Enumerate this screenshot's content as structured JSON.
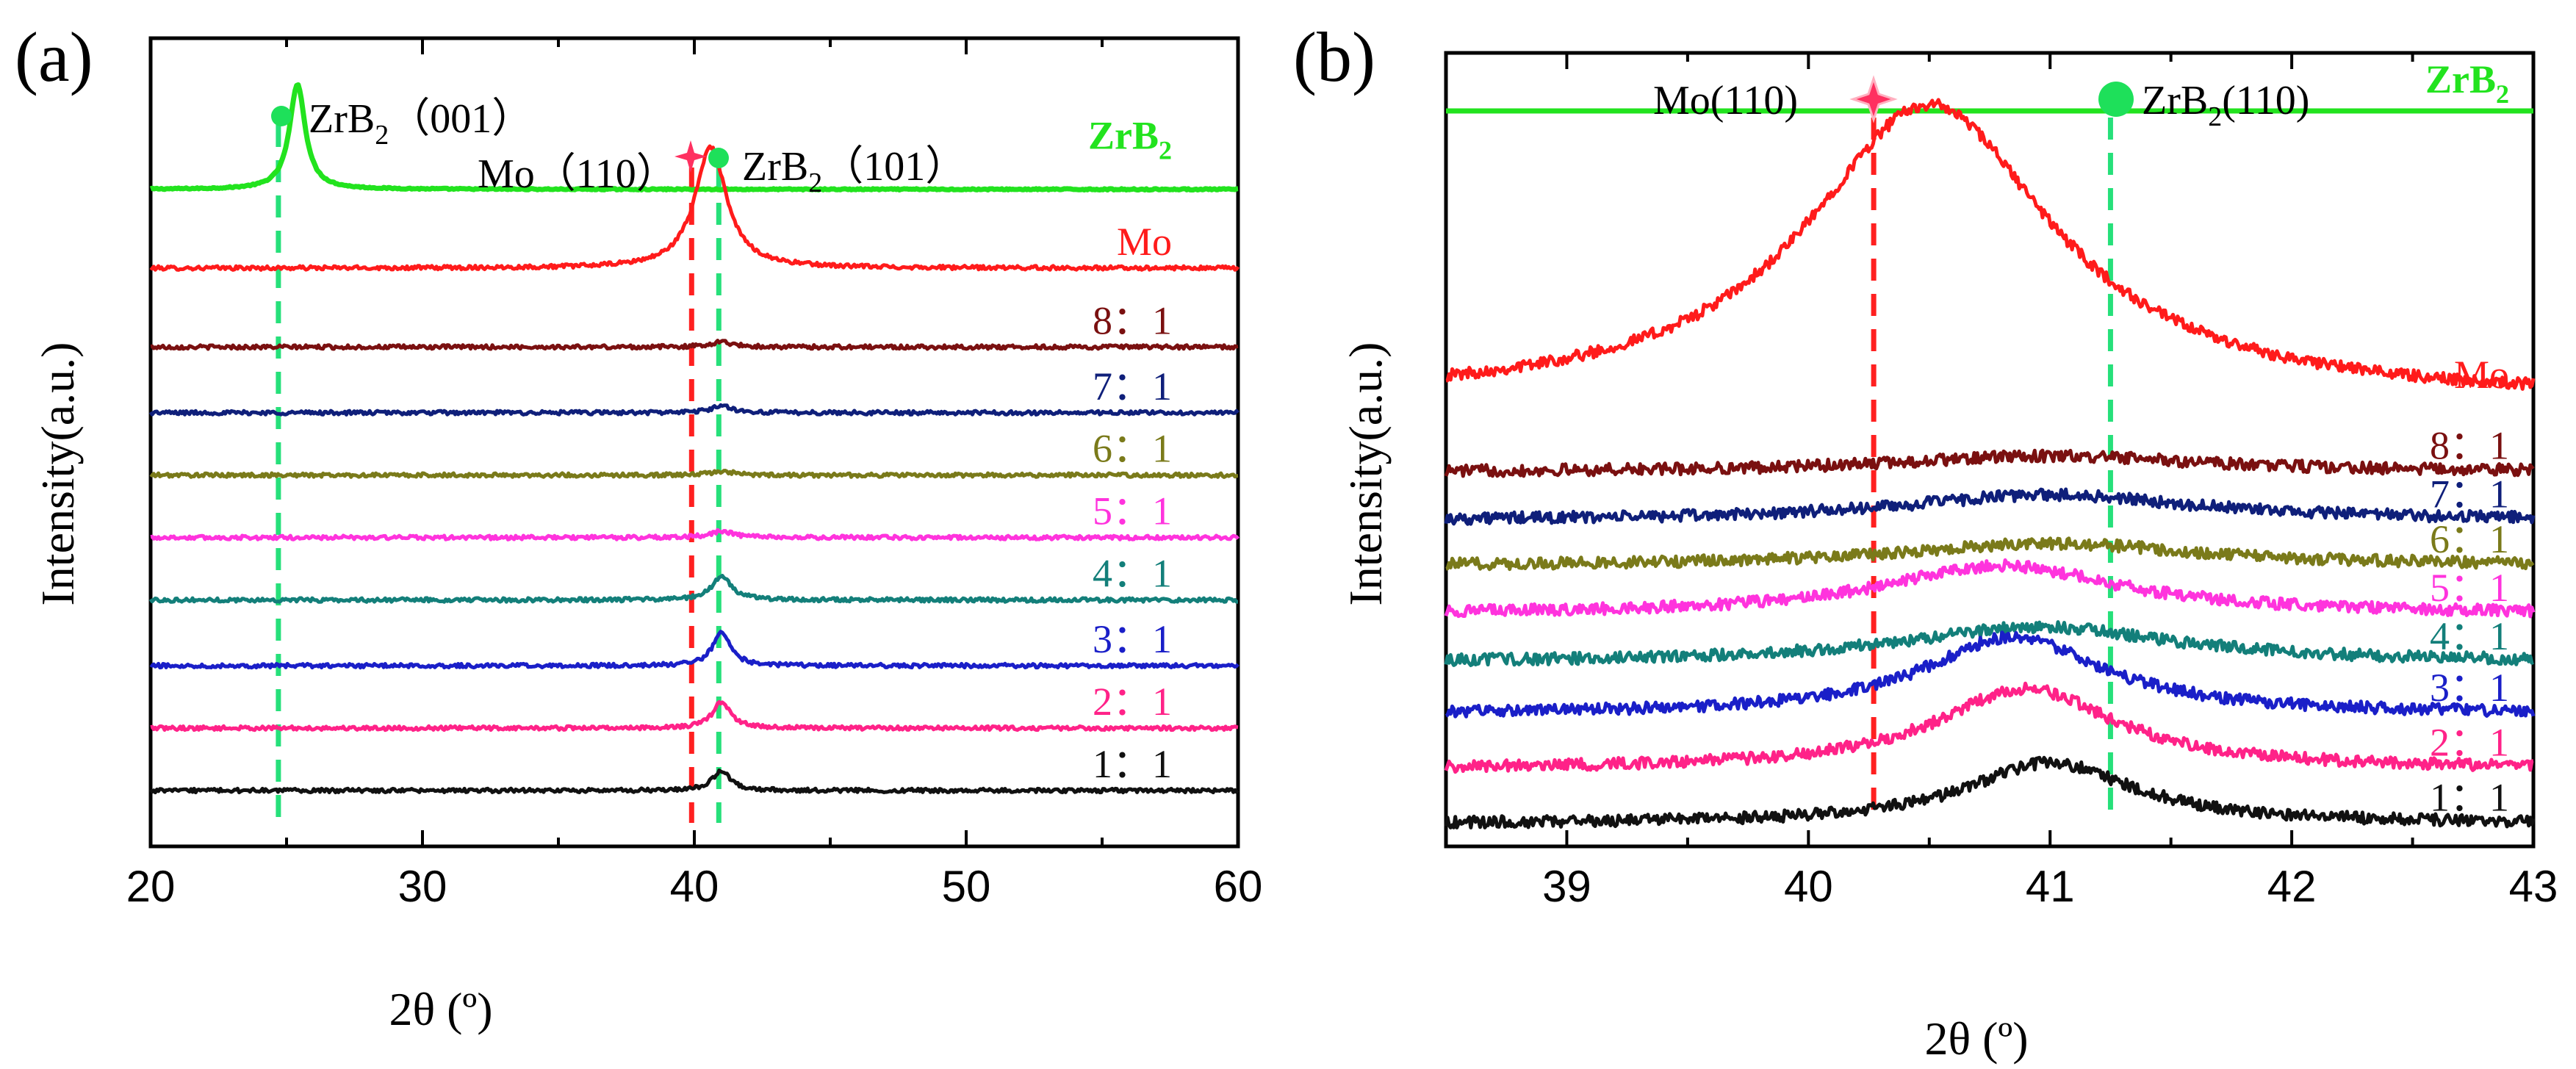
{
  "chart_data": [
    {
      "panel": "(a)",
      "type": "line",
      "xlabel": "2θ (º)",
      "ylabel": "Intensity(a.u.)",
      "xlim": [
        20,
        60
      ],
      "xticks": [
        20,
        30,
        40,
        50,
        60
      ],
      "vlines": [
        {
          "name": "ZrB2 (001)",
          "x": 24.7,
          "color": "#26e07a"
        },
        {
          "name": "Mo (110)",
          "x": 39.9,
          "color": "#ff2020"
        },
        {
          "name": "ZrB2 (101)",
          "x": 40.9,
          "color": "#26e07a"
        }
      ],
      "annotations": [
        {
          "text": "ZrB",
          "sub": "2",
          "tail": "（001）",
          "marker": "circle",
          "color": "#1ee05a"
        },
        {
          "text": "Mo（110）",
          "sub": "",
          "tail": "",
          "marker": "star",
          "color": "#ff3060"
        },
        {
          "text": "ZrB",
          "sub": "2",
          "tail": "（101）",
          "marker": "circle",
          "color": "#1ee05a"
        }
      ],
      "series": [
        {
          "name": "ZrB2",
          "label": "ZrB",
          "sub": "2",
          "color": "#22e31e",
          "offset": 10.0,
          "peaks": [
            {
              "x": 25.4,
              "h": 1.6,
              "w": 0.35
            }
          ]
        },
        {
          "name": "Mo",
          "label": "Mo",
          "sub": "",
          "color": "#ff1b1b",
          "offset": 8.8,
          "peaks": [
            {
              "x": 40.6,
              "h": 1.85,
              "w": 0.7
            }
          ]
        },
        {
          "name": "8:1",
          "label": "8：1",
          "sub": "",
          "color": "#7a1010",
          "offset": 7.6,
          "peaks": [
            {
              "x": 41.0,
              "h": 0.08,
              "w": 0.5
            }
          ]
        },
        {
          "name": "7:1",
          "label": "7：1",
          "sub": "",
          "color": "#0f1f7a",
          "offset": 6.6,
          "peaks": [
            {
              "x": 41.0,
              "h": 0.1,
              "w": 0.5
            }
          ]
        },
        {
          "name": "6:1",
          "label": "6：1",
          "sub": "",
          "color": "#7a7a1a",
          "offset": 5.65,
          "peaks": [
            {
              "x": 41.0,
              "h": 0.06,
              "w": 0.5
            }
          ]
        },
        {
          "name": "5:1",
          "label": "5：1",
          "sub": "",
          "color": "#ff33dd",
          "offset": 4.7,
          "peaks": [
            {
              "x": 41.0,
              "h": 0.1,
              "w": 0.5
            }
          ]
        },
        {
          "name": "4:1",
          "label": "4：1",
          "sub": "",
          "color": "#137f7a",
          "offset": 3.75,
          "peaks": [
            {
              "x": 41.0,
              "h": 0.35,
              "w": 0.45
            }
          ]
        },
        {
          "name": "3:1",
          "label": "3：1",
          "sub": "",
          "color": "#1a1fc8",
          "offset": 2.75,
          "peaks": [
            {
              "x": 41.0,
              "h": 0.5,
              "w": 0.4
            }
          ]
        },
        {
          "name": "2:1",
          "label": "2：1",
          "sub": "",
          "color": "#ff2288",
          "offset": 1.8,
          "peaks": [
            {
              "x": 41.0,
              "h": 0.4,
              "w": 0.4
            }
          ]
        },
        {
          "name": "1:1",
          "label": "1：1",
          "sub": "",
          "color": "#111111",
          "offset": 0.85,
          "peaks": [
            {
              "x": 41.0,
              "h": 0.3,
              "w": 0.4
            }
          ]
        }
      ]
    },
    {
      "panel": "(b)",
      "type": "line",
      "xlabel": "2θ (º)",
      "ylabel": "Intensity(a.u.)",
      "xlim": [
        38.5,
        43
      ],
      "xticks": [
        39,
        40,
        41,
        42,
        43
      ],
      "vlines": [
        {
          "name": "Mo(110)",
          "x": 40.27,
          "color": "#ff2020"
        },
        {
          "name": "ZrB2(110)",
          "x": 41.25,
          "color": "#26e07a"
        }
      ],
      "annotations": [
        {
          "text": "Mo(110)",
          "sub": "",
          "tail": "",
          "marker": "star",
          "color": "#ff3060"
        },
        {
          "text": "ZrB",
          "sub": "2",
          "tail": "(110)",
          "marker": "circle",
          "color": "#1ee05a"
        }
      ],
      "series": [
        {
          "name": "ZrB2",
          "label": "ZrB",
          "sub": "2",
          "color": "#22e31e",
          "offset": 11.4,
          "peaks": []
        },
        {
          "name": "Mo",
          "label": "Mo",
          "sub": "",
          "color": "#ff1b1b",
          "offset": 6.9,
          "peaks": [
            {
              "x": 40.5,
              "h": 4.6,
              "w": 0.62
            }
          ]
        },
        {
          "name": "8:1",
          "label": "8：1",
          "sub": "",
          "color": "#7a1010",
          "offset": 5.8,
          "peaks": [
            {
              "x": 41.0,
              "h": 0.25,
              "w": 0.8
            }
          ]
        },
        {
          "name": "7:1",
          "label": "7：1",
          "sub": "",
          "color": "#0f1f7a",
          "offset": 5.05,
          "peaks": [
            {
              "x": 41.0,
              "h": 0.4,
              "w": 0.75
            }
          ]
        },
        {
          "name": "6:1",
          "label": "6：1",
          "sub": "",
          "color": "#7a7a1a",
          "offset": 4.35,
          "peaks": [
            {
              "x": 41.0,
              "h": 0.35,
              "w": 0.75
            }
          ]
        },
        {
          "name": "5:1",
          "label": "5：1",
          "sub": "",
          "color": "#ff33dd",
          "offset": 3.6,
          "peaks": [
            {
              "x": 40.8,
              "h": 0.75,
              "w": 0.6
            }
          ]
        },
        {
          "name": "4:1",
          "label": "4：1",
          "sub": "",
          "color": "#137f7a",
          "offset": 2.85,
          "peaks": [
            {
              "x": 40.95,
              "h": 0.55,
              "w": 0.7
            }
          ]
        },
        {
          "name": "3:1",
          "label": "3：1",
          "sub": "",
          "color": "#1a1fc8",
          "offset": 2.05,
          "peaks": [
            {
              "x": 40.85,
              "h": 1.2,
              "w": 0.45
            }
          ]
        },
        {
          "name": "2:1",
          "label": "2：1",
          "sub": "",
          "color": "#ff2288",
          "offset": 1.2,
          "peaks": [
            {
              "x": 40.9,
              "h": 1.25,
              "w": 0.45
            }
          ]
        },
        {
          "name": "1:1",
          "label": "1：1",
          "sub": "",
          "color": "#111111",
          "offset": 0.35,
          "peaks": [
            {
              "x": 41.0,
              "h": 0.95,
              "w": 0.42
            }
          ]
        }
      ]
    }
  ]
}
